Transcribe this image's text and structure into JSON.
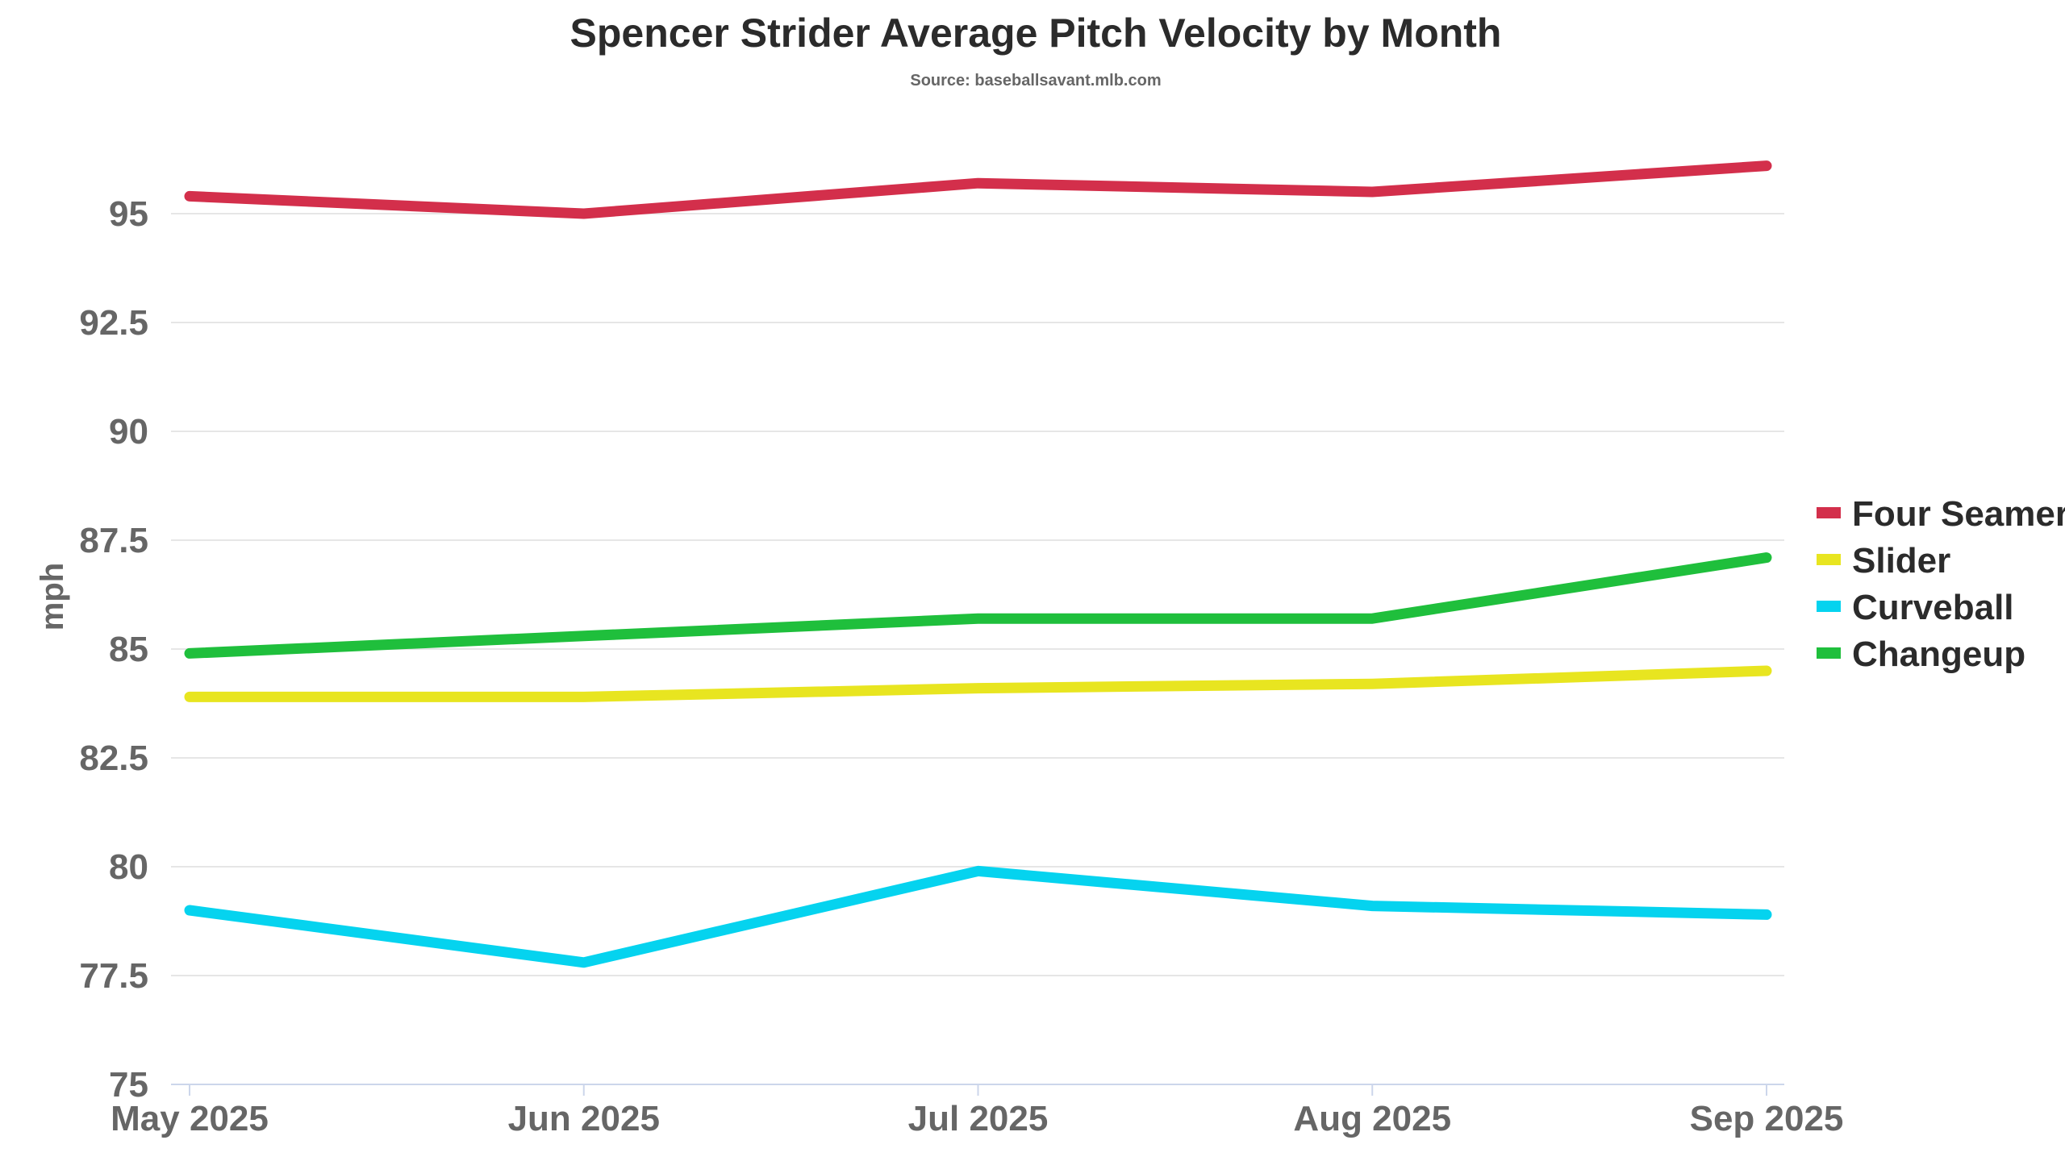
{
  "chart_data": {
    "type": "line",
    "title": "Spencer Strider Average Pitch Velocity by Month",
    "subtitle": "Source: baseballsavant.mlb.com",
    "xlabel": "",
    "ylabel": "mph",
    "categories": [
      "May 2025",
      "Jun 2025",
      "Jul 2025",
      "Aug 2025",
      "Sep 2025"
    ],
    "ylim": [
      75,
      97.5
    ],
    "yticks": [
      75,
      77.5,
      80,
      82.5,
      85,
      87.5,
      90,
      92.5,
      95
    ],
    "ytick_labels": [
      "75",
      "77.5",
      "80",
      "82.5",
      "85",
      "87.5",
      "90",
      "92.5",
      "95"
    ],
    "grid": true,
    "legend_position": "right",
    "series": [
      {
        "name": "Four Seamer",
        "color": "#d32f4b",
        "values": [
          95.4,
          95.0,
          95.7,
          95.5,
          96.1
        ]
      },
      {
        "name": "Slider",
        "color": "#e8e520",
        "values": [
          83.9,
          83.9,
          84.1,
          84.2,
          84.5
        ]
      },
      {
        "name": "Curveball",
        "color": "#05d3ef",
        "values": [
          79.0,
          77.8,
          79.9,
          79.1,
          78.9
        ]
      },
      {
        "name": "Changeup",
        "color": "#1fbf3c",
        "values": [
          84.9,
          85.3,
          85.7,
          85.7,
          87.1
        ]
      }
    ]
  }
}
